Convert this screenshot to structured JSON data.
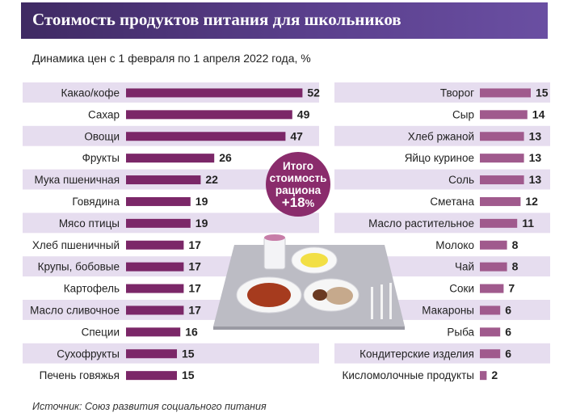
{
  "header": {
    "title": "Стоимость продуктов питания для школьников"
  },
  "subtitle": "Динамика цен с 1 февраля по 1 апреля 2022 года, %",
  "source": "Источник: Союз развития социального питания",
  "total": {
    "line1": "Итого",
    "line2": "стоимость",
    "line3": "рациона",
    "value": "+18",
    "unit": "%"
  },
  "colors": {
    "header_left": "#3f2a63",
    "header_right": "#6a4fa2",
    "bar_left_chart": "#7b2768",
    "bar_right_chart": "#a05a8d",
    "row_band": "#e6ddef",
    "bubble": "#8a2c6c"
  },
  "chart_data": [
    {
      "type": "bar",
      "orientation": "horizontal",
      "categories": [
        "Какао/кофе",
        "Сахар",
        "Овощи",
        "Фрукты",
        "Мука пшеничная",
        "Говядина",
        "Мясо птицы",
        "Хлеб пшеничный",
        "Крупы, бобовые",
        "Картофель",
        "Масло сливочное",
        "Специи",
        "Сухофрукты",
        "Печень говяжья"
      ],
      "values": [
        52,
        49,
        47,
        26,
        22,
        19,
        19,
        17,
        17,
        17,
        17,
        16,
        15,
        15
      ]
    },
    {
      "type": "bar",
      "orientation": "horizontal",
      "categories": [
        "Творог",
        "Сыр",
        "Хлеб ржаной",
        "Яйцо куриное",
        "Соль",
        "Сметана",
        "Масло растительное",
        "Молоко",
        "Чай",
        "Соки",
        "Макароны",
        "Рыба",
        "Кондитерские изделия",
        "Кисломолочные продукты"
      ],
      "values": [
        15,
        14,
        13,
        13,
        13,
        12,
        11,
        8,
        8,
        7,
        6,
        6,
        6,
        2
      ]
    }
  ]
}
